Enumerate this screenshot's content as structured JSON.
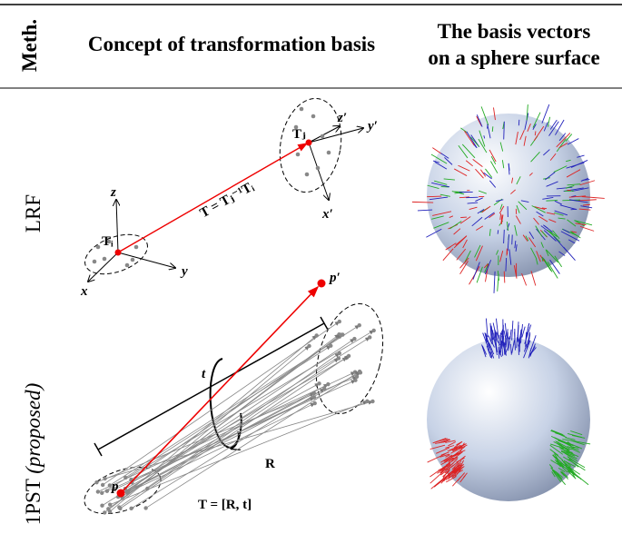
{
  "header": {
    "method": "Meth.",
    "concept": "Concept of transformation basis",
    "sphere": [
      "The basis vectors",
      "on a sphere surface"
    ]
  },
  "rows": [
    {
      "method": [
        "LRF"
      ],
      "labels": {
        "transform": "T = Tⱼ⁻¹Tᵢ",
        "ti": "Tᵢ",
        "tj": "Tⱼ",
        "z": "z",
        "y": "y",
        "x": "x",
        "z2": "z′",
        "y2": "y′",
        "x2": "x′"
      }
    },
    {
      "method": [
        "1PST",
        "(proposed)"
      ],
      "labels": {
        "t": "t",
        "r": "R",
        "transform": "T = [R, t]",
        "p": "p",
        "p2": "p′"
      }
    }
  ]
}
